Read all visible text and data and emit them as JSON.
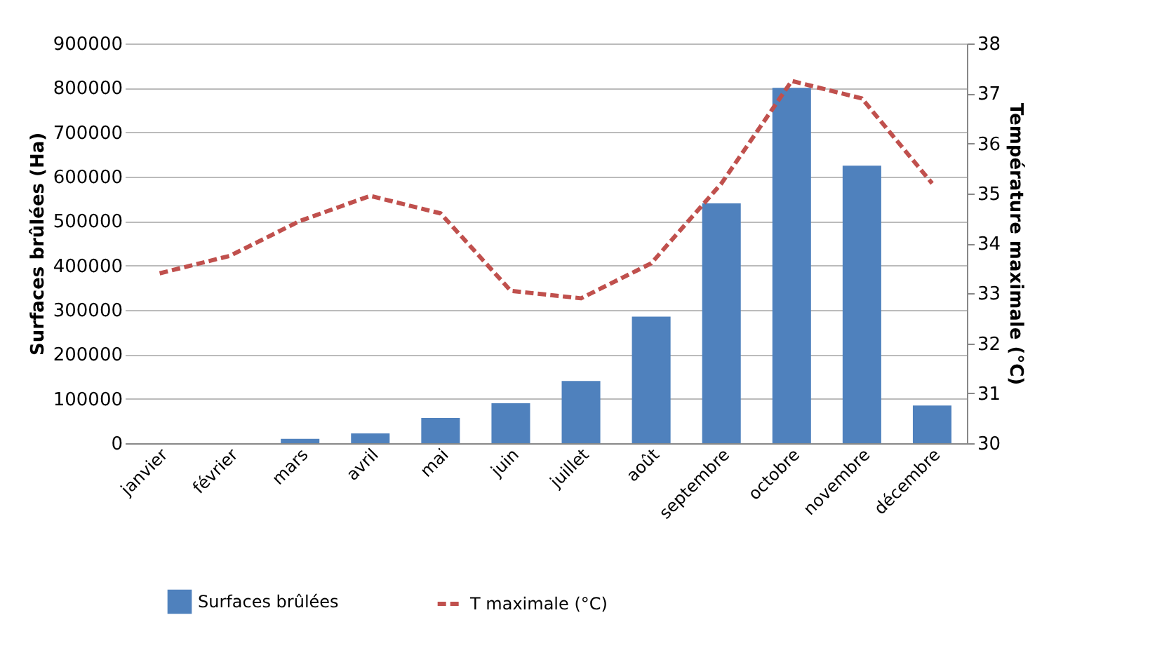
{
  "chart_data": {
    "type": "bar",
    "categories": [
      "janvier",
      "février",
      "mars",
      "avril",
      "mai",
      "juin",
      "juillet",
      "août",
      "septembre",
      "octobre",
      "novembre",
      "décembre"
    ],
    "series": [
      {
        "name": "Surfaces brûlées",
        "color": "#4f81bd",
        "values": [
          0,
          0,
          10000,
          22000,
          57000,
          90000,
          140000,
          285000,
          540000,
          800000,
          625000,
          85000
        ]
      },
      {
        "name": "T maximale (°C)",
        "type": "line",
        "axis": "y2",
        "color": "#c0504d",
        "line_style": "dashed",
        "marker": "none",
        "values": [
          33.4,
          33.75,
          34.45,
          34.95,
          34.6,
          33.05,
          32.9,
          33.6,
          35.2,
          37.25,
          36.9,
          35.2
        ]
      }
    ],
    "ylabel": "Surfaces brûlées (Ha)",
    "y2label": "Température maximale (°C)",
    "ylim": [
      0,
      900000
    ],
    "yticks": [
      0,
      100000,
      200000,
      300000,
      400000,
      500000,
      600000,
      700000,
      800000,
      900000
    ],
    "y2lim": [
      30,
      38
    ],
    "y2ticks": [
      30,
      31,
      32,
      33,
      34,
      35,
      36,
      37,
      38
    ],
    "grid": "y",
    "legend": "bottom"
  }
}
